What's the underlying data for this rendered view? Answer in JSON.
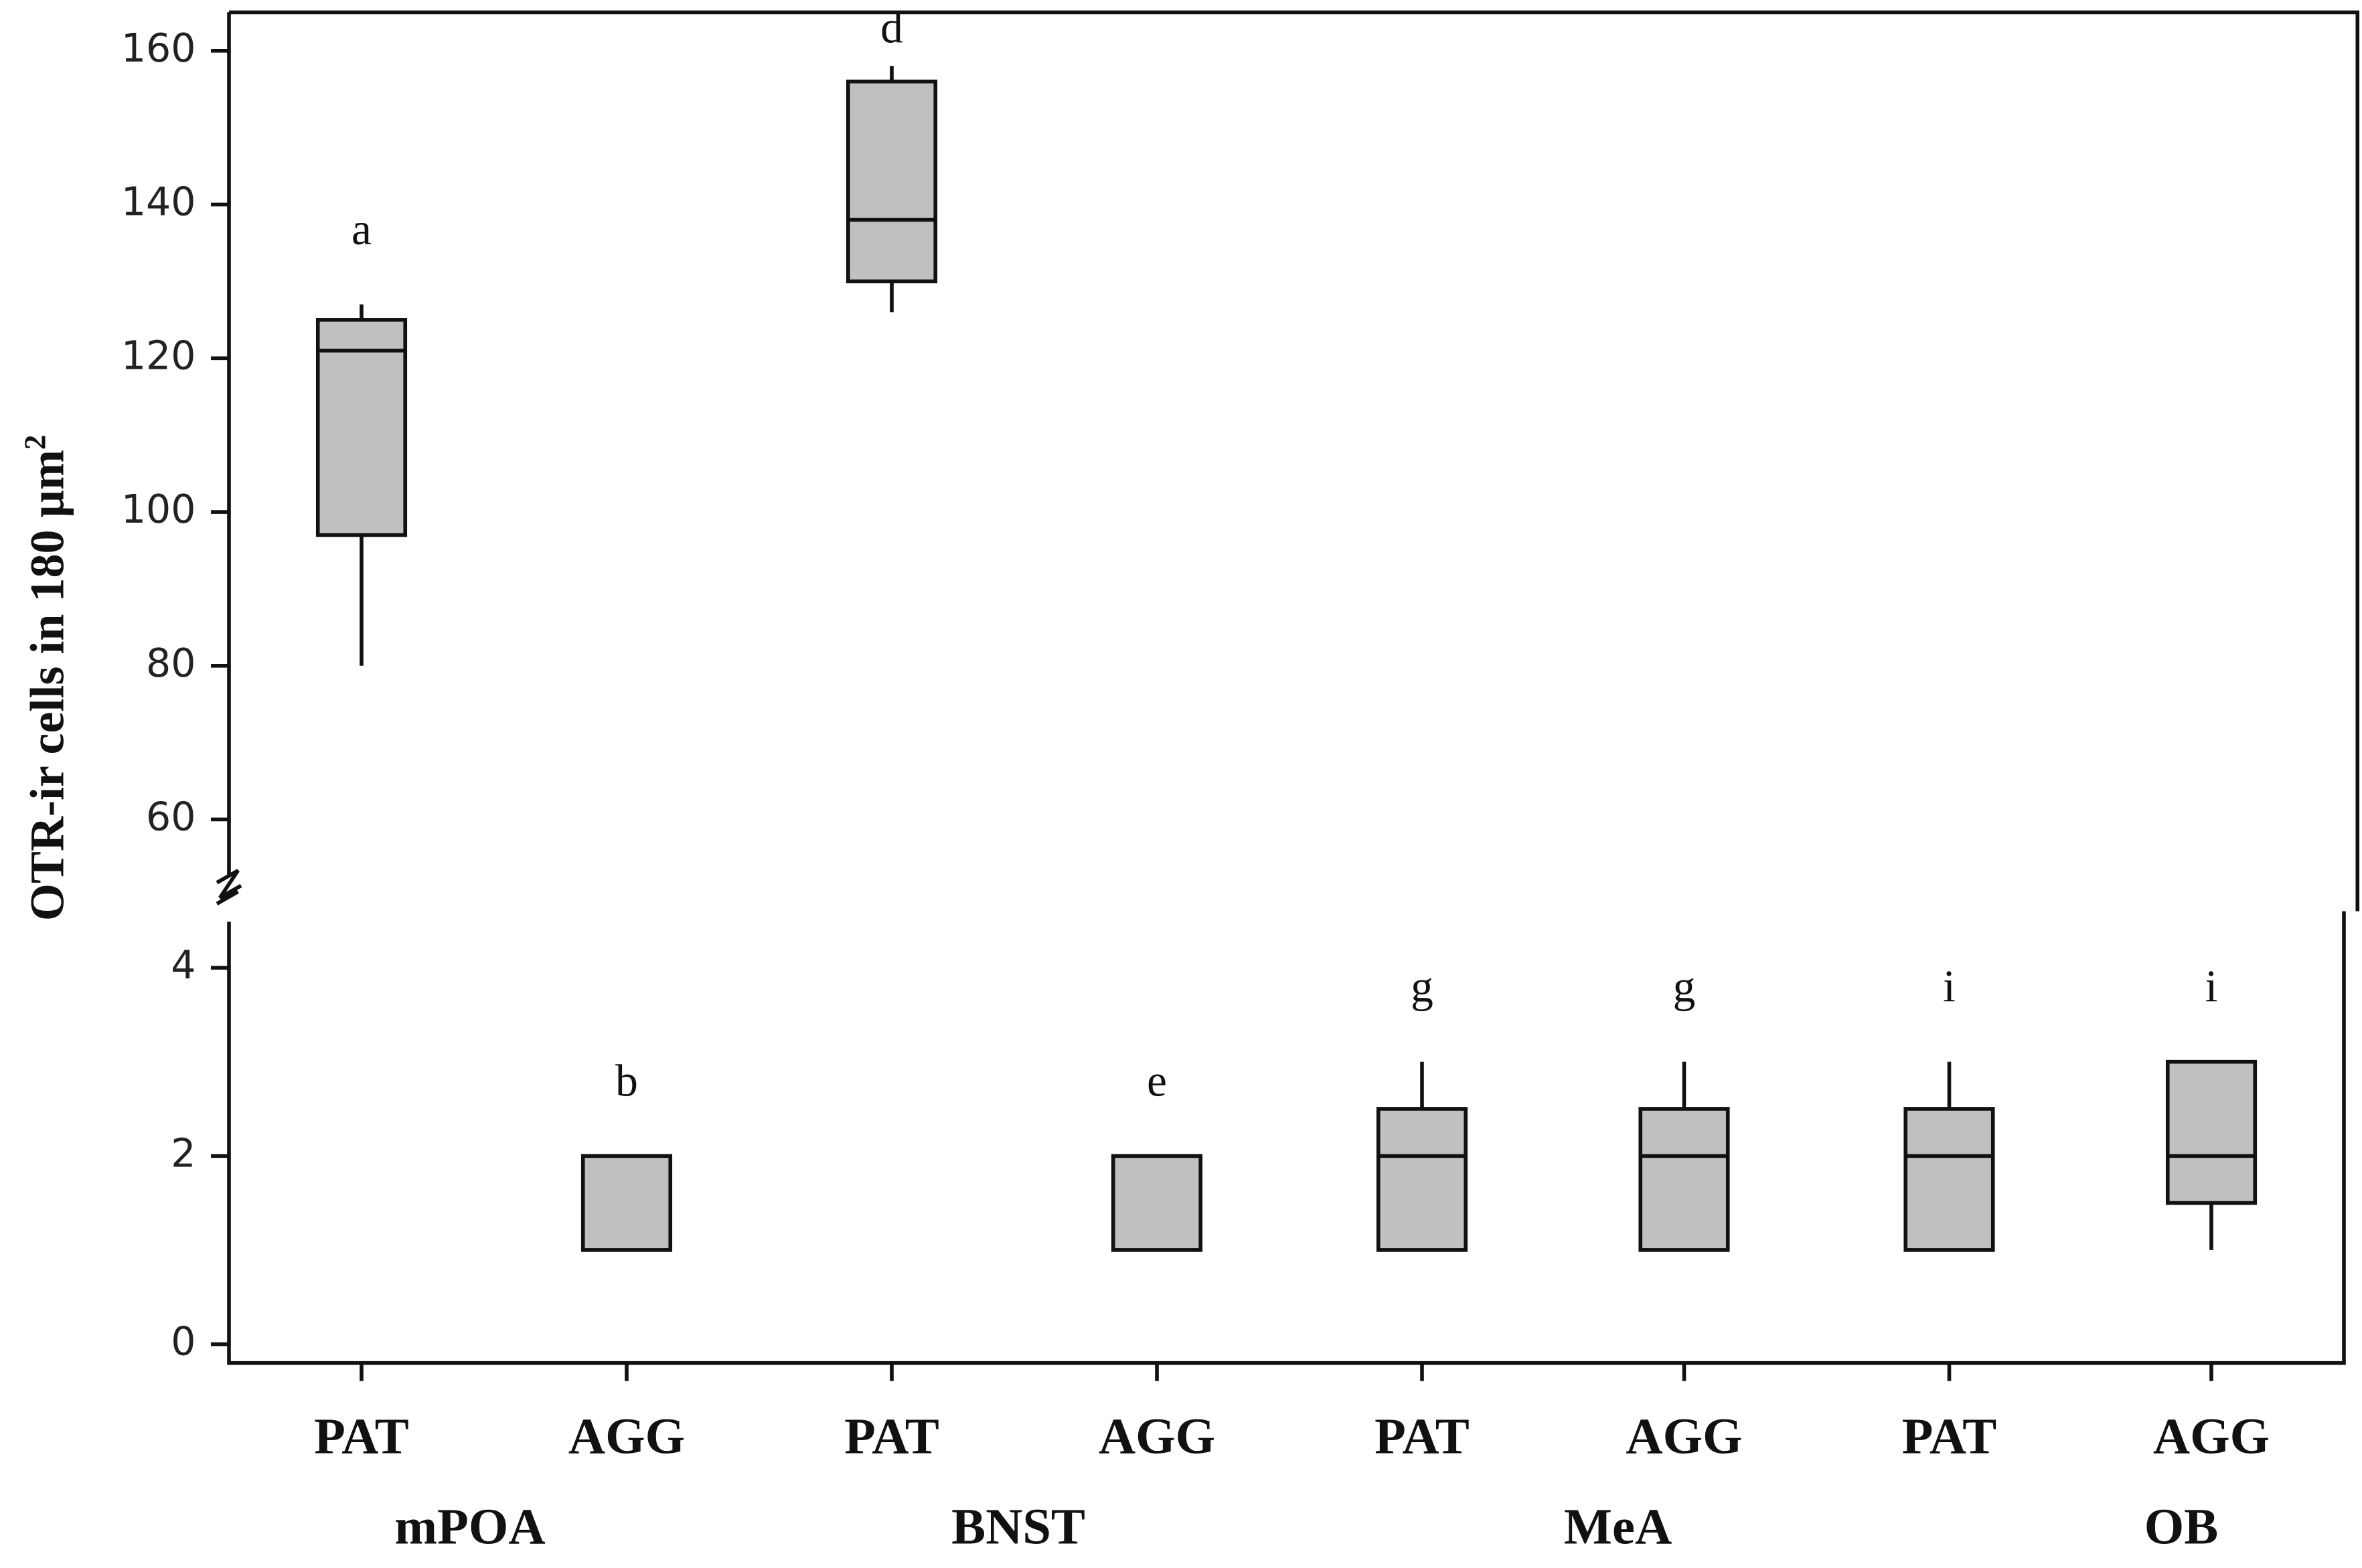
{
  "chart_data": {
    "type": "box",
    "y_label": "OTR-ir cells in 180 µm",
    "y_label_sup": "2",
    "categories": [
      "PAT",
      "AGG",
      "PAT",
      "AGG",
      "PAT",
      "AGG",
      "PAT",
      "AGG"
    ],
    "groups": [
      "mPOA",
      "BNST",
      "MeA",
      "OB"
    ],
    "annotations": [
      "a",
      "b",
      "d",
      "e",
      "g",
      "g",
      "i",
      "i"
    ],
    "color": "#c0c0c0",
    "upper": {
      "ylim": [
        51,
        165
      ],
      "yticks": [
        60,
        80,
        100,
        120,
        140,
        160
      ]
    },
    "lower": {
      "ylim": [
        -0.2,
        4.6
      ],
      "yticks": [
        0,
        2,
        4
      ]
    },
    "boxes": [
      {
        "low": 80,
        "q1": 97,
        "median": 121,
        "q3": 125,
        "high": 127
      },
      {
        "low": 1,
        "q1": 1,
        "median": 2,
        "q3": 2,
        "high": 2
      },
      {
        "low": 126,
        "q1": 130,
        "median": 138,
        "q3": 156,
        "high": 158
      },
      {
        "low": 1,
        "q1": 1,
        "median": 2,
        "q3": 2,
        "high": 2
      },
      {
        "low": 1,
        "q1": 1,
        "median": 2,
        "q3": 2.5,
        "high": 3
      },
      {
        "low": 1,
        "q1": 1,
        "median": 2,
        "q3": 2.5,
        "high": 3
      },
      {
        "low": 1,
        "q1": 1,
        "median": 2,
        "q3": 2.5,
        "high": 3
      },
      {
        "low": 1,
        "q1": 1.5,
        "median": 2,
        "q3": 3,
        "high": 3
      }
    ]
  }
}
